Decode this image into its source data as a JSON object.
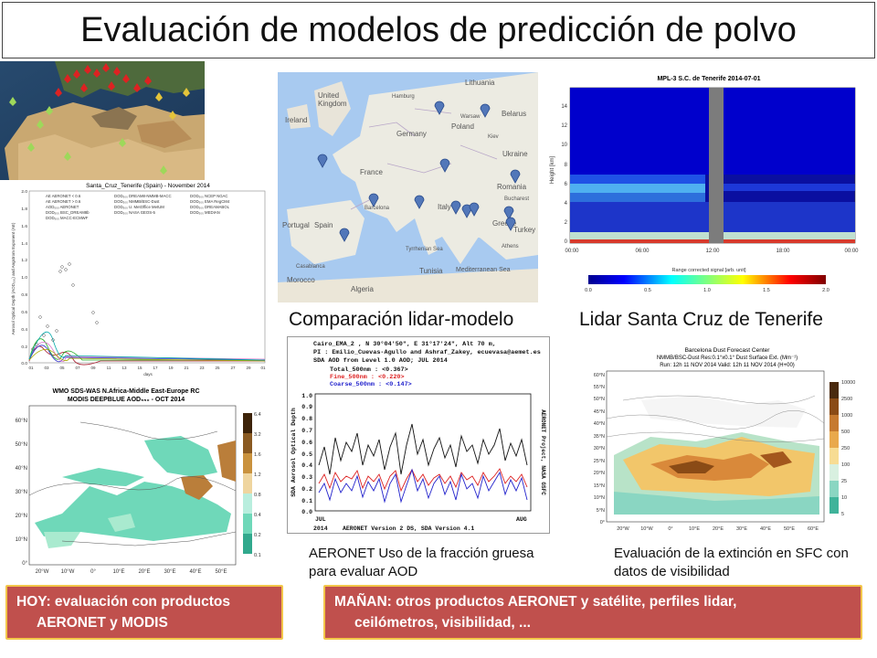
{
  "title": "Evaluación de modelos de predicción de polvo",
  "captions": {
    "lidar_model": "Comparación lidar-modelo",
    "lidar_tenerife": "Lidar Santa Cruz de Tenerife",
    "aeronet": "AERONET Uso de la fracción gruesa para evaluar AOD",
    "extinction": "Evaluación de la extinción en SFC con datos de visibilidad"
  },
  "banners": {
    "today_line1": "HOY: evaluación con productos",
    "today_line2": "AERONET y MODIS",
    "tomorrow_line1": "MAÑAN: otros productos AERONET y satélite, perfiles lidar,",
    "tomorrow_line2": "ceilómetros, visibilidad, ..."
  },
  "panels": {
    "tenerife_plot": {
      "title": "Santa_Cruz_Tenerife (Spain) - November 2014",
      "ylabel": "Aerosol Optical Depth (AOD₅₀₀) and Angstrom Exponent (AE)",
      "xlabel": "days",
      "legend": [
        "AE AERONET < 0.6",
        "AE AERONET > 0.6",
        "AOD₅₀₀ AERONET",
        "DOD₅₀₀ BSC_DREAM8b",
        "DOD₅₀₀ MACC-ECMWF",
        "DOD₅₀₀ DREAM8-NMMB-MACC",
        "DOD₅₀₀ NMMB/BSC-Dust",
        "DOD₅₀₀ U. MetOffice MetUM",
        "DOD₅₀₀ NASA GEOS-5",
        "DOD₅₀₀ NCEP NGAC",
        "DOD₅₀₀ EMA RegCM4",
        "DOD₅₀₀ DREAMABOL",
        "DOD₅₀₀ MEDIAN"
      ],
      "yticks": [
        "2.0",
        "1.8",
        "1.6",
        "1.4",
        "1.2",
        "1.0",
        "0.8",
        "0.6",
        "0.4",
        "0.2",
        "0.0"
      ],
      "xticks": [
        "01",
        "03",
        "05",
        "07",
        "09",
        "11",
        "13",
        "15",
        "17",
        "19",
        "21",
        "23",
        "25",
        "27",
        "29",
        "01"
      ]
    },
    "modis_map": {
      "title1": "WMO SDS-WAS   N.Africa-Middle East-Europe RC",
      "title2": "MODIS DEEPBLUE AOD₅₅₀ - OCT 2014",
      "lat_labels": [
        "60°N",
        "50°N",
        "40°N",
        "30°N",
        "20°N",
        "10°N",
        "0°"
      ],
      "lon_labels": [
        "20°W",
        "10°W",
        "0°",
        "10°E",
        "20°E",
        "30°E",
        "40°E",
        "50°E"
      ],
      "scale_labels": [
        "6.4",
        "3.2",
        "1.6",
        "1.2",
        "0.8",
        "0.4",
        "0.2",
        "0.1"
      ]
    },
    "mpl_lidar": {
      "title": "MPL-3 S.C. de Tenerife 2014-07-01",
      "ylabel": "Height [km]",
      "yticks": [
        "14",
        "12",
        "10",
        "8",
        "6",
        "4",
        "2",
        "0"
      ],
      "xticks": [
        "00:00",
        "06:00",
        "12:00",
        "18:00",
        "00:00"
      ],
      "colorbar_label": "Range corrected signal [arb. unit]",
      "colorbar_ticks": [
        "0.0",
        "0.5",
        "1.0",
        "1.5",
        "2.0"
      ]
    },
    "europe_map": {
      "labels": [
        "Lithuania",
        "United Kingdom",
        "Ireland",
        "Poland",
        "Germany",
        "Belarus",
        "Ukraine",
        "France",
        "Romania",
        "Italy",
        "Spain",
        "Portugal",
        "Turkey",
        "Greece",
        "Tunisia",
        "Algeria",
        "Morocco",
        "Casablanca",
        "Mediterranean Sea",
        "Tyrrhenian Sea",
        "Kiev",
        "Warsaw",
        "Hamburg",
        "Bucharest",
        "Athens",
        "Barcelona"
      ]
    },
    "aeronet_plot": {
      "header1": "Cairo_EMA_2 , N 30°04'50\", E 31°17'24\", Alt 70 m,",
      "header2": "PI : Emilio_Cuevas-Agullo and Ashraf_Zakey, ecuevasa@aemet.es",
      "header3": "SDA AOD from Level 1.0 AOD; JUL 2014",
      "legend": [
        "Total_500nm  : <0.367>",
        "Fine_500nm   : <0.220>",
        "Coarse_500nm : <0.147>"
      ],
      "ylabel": "SDA Aerosol Optical Depth",
      "yticks": [
        "1.0",
        "0.9",
        "0.8",
        "0.7",
        "0.6",
        "0.5",
        "0.4",
        "0.3",
        "0.2",
        "0.1",
        "0.0"
      ],
      "side_label": "AERONET Project, NASA GSFC",
      "xlabel_left": "JUL",
      "xlabel_right": "AUG",
      "year": "2014",
      "footer": "AERONET Version 2 DS, SDA Version 4.1"
    },
    "bsc_map": {
      "title1": "Barcelona Dust Forecast Center",
      "title2": "NMMB/BSC-Dust   Res:0.1°x0.1°   Dust Surface Ext. (Mm⁻¹)",
      "title3": "Run: 12h 11 NOV 2014   Valid: 12h 11 NOV 2014 (H+00)",
      "lat_labels": [
        "60°N",
        "55°N",
        "50°N",
        "45°N",
        "40°N",
        "35°N",
        "30°N",
        "25°N",
        "20°N",
        "15°N",
        "10°N",
        "5°N",
        "0°"
      ],
      "lon_labels": [
        "20°W",
        "10°W",
        "0°",
        "10°E",
        "20°E",
        "30°E",
        "40°E",
        "50°E",
        "60°E"
      ],
      "scale_labels": [
        "10000",
        "2500",
        "1000",
        "500",
        "250",
        "100",
        "25",
        "10",
        "5"
      ]
    }
  },
  "colors": {
    "banner_fill": "#c0504d",
    "banner_border": "#f2c64a",
    "dust_orange": "#e8a64a",
    "modis_teal": "#6fd8b9",
    "lidar_blue": "#1d2ec8"
  }
}
